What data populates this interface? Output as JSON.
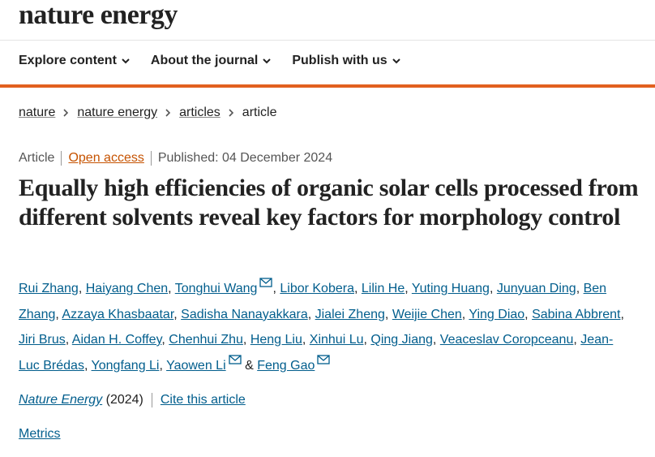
{
  "header": {
    "logo": "nature energy"
  },
  "nav": {
    "items": [
      "Explore content",
      "About the journal",
      "Publish with us"
    ]
  },
  "breadcrumb": {
    "items": [
      "nature",
      "nature energy",
      "articles",
      "article"
    ]
  },
  "meta": {
    "type": "Article",
    "access": "Open access",
    "published": "Published: 04 December 2024"
  },
  "article": {
    "title": "Equally high efficiencies of organic solar cells processed from different solvents reveal key factors for morphology control",
    "separator": ",",
    "final_separator": "&",
    "authors": [
      {
        "name": "Rui Zhang",
        "email": false
      },
      {
        "name": "Haiyang Chen",
        "email": false
      },
      {
        "name": "Tonghui Wang",
        "email": true
      },
      {
        "name": "Libor Kobera",
        "email": false
      },
      {
        "name": "Lilin He",
        "email": false
      },
      {
        "name": "Yuting Huang",
        "email": false
      },
      {
        "name": "Junyuan Ding",
        "email": false
      },
      {
        "name": "Ben Zhang",
        "email": false
      },
      {
        "name": "Azzaya Khasbaatar",
        "email": false
      },
      {
        "name": "Sadisha Nanayakkara",
        "email": false
      },
      {
        "name": "Jialei Zheng",
        "email": false
      },
      {
        "name": "Weijie Chen",
        "email": false
      },
      {
        "name": "Ying Diao",
        "email": false
      },
      {
        "name": "Sabina Abbrent",
        "email": false
      },
      {
        "name": "Jiri Brus",
        "email": false
      },
      {
        "name": "Aidan H. Coffey",
        "email": false
      },
      {
        "name": "Chenhui Zhu",
        "email": false
      },
      {
        "name": "Heng Liu",
        "email": false
      },
      {
        "name": "Xinhui Lu",
        "email": false
      },
      {
        "name": "Qing Jiang",
        "email": false
      },
      {
        "name": "Veaceslav Coropceanu",
        "email": false
      },
      {
        "name": "Jean-Luc Brédas",
        "email": false
      },
      {
        "name": "Yongfang Li",
        "email": false
      },
      {
        "name": "Yaowen Li",
        "email": true
      },
      {
        "name": "Feng Gao",
        "email": true
      }
    ]
  },
  "citation": {
    "journal": "Nature Energy",
    "year": "(2024)",
    "cite": "Cite this article"
  },
  "metrics": {
    "label": "Metrics"
  }
}
